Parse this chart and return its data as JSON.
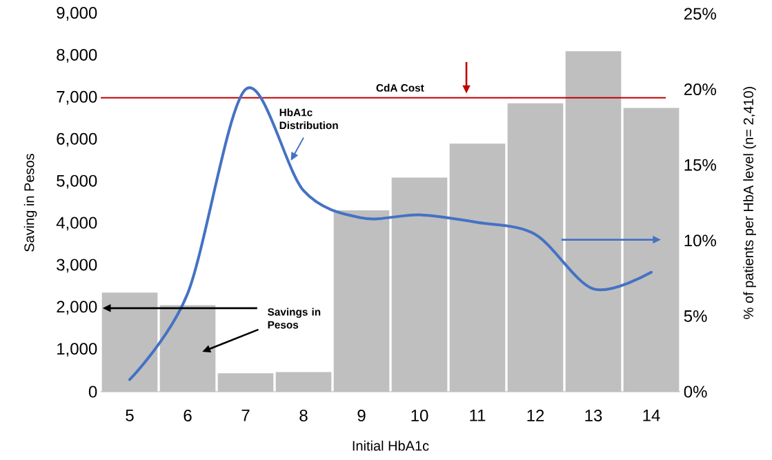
{
  "chart_data": {
    "type": "bar",
    "xlabel": "Initial HbA1c",
    "ylabel": "Saving in Pesos",
    "y2label": "% of patients per HbA level (n= 2,410)",
    "categories": [
      "5",
      "6",
      "7",
      "8",
      "9",
      "10",
      "11",
      "12",
      "13",
      "14"
    ],
    "series": [
      {
        "name": "Savings in Pesos",
        "type": "bar",
        "color": "#bfbfbf",
        "values": [
          2360,
          2060,
          440,
          470,
          4320,
          5100,
          5910,
          6870,
          8110,
          6760
        ]
      },
      {
        "name": "HbA1c Distribution",
        "type": "line",
        "axis": "y2",
        "color": "#4472c4",
        "values": [
          0.8,
          6.5,
          20.0,
          13.3,
          11.5,
          11.7,
          11.2,
          10.4,
          6.8,
          7.9
        ]
      }
    ],
    "ylim": [
      0,
      9000
    ],
    "yticks": [
      {
        "value": 0,
        "label": "0"
      },
      {
        "value": 1000,
        "label": "1,000"
      },
      {
        "value": 2000,
        "label": "2,000"
      },
      {
        "value": 3000,
        "label": "3,000"
      },
      {
        "value": 4000,
        "label": "4,000"
      },
      {
        "value": 5000,
        "label": "5,000"
      },
      {
        "value": 6000,
        "label": "6,000"
      },
      {
        "value": 7000,
        "label": "7,000"
      },
      {
        "value": 8000,
        "label": "8,000"
      },
      {
        "value": 9000,
        "label": "9,000"
      }
    ],
    "y2lim": [
      0,
      25
    ],
    "y2ticks": [
      {
        "value": 0,
        "label": "0%"
      },
      {
        "value": 5,
        "label": "5%"
      },
      {
        "value": 10,
        "label": "10%"
      },
      {
        "value": 15,
        "label": "15%"
      },
      {
        "value": 20,
        "label": "20%"
      },
      {
        "value": 25,
        "label": "25%"
      }
    ],
    "ref_lines": [
      {
        "axis": "y",
        "value": 7000,
        "label": "CdA Cost",
        "color": "#c00000"
      }
    ],
    "grid": false,
    "legend": false,
    "marker": "none",
    "line_style": "solid"
  }
}
